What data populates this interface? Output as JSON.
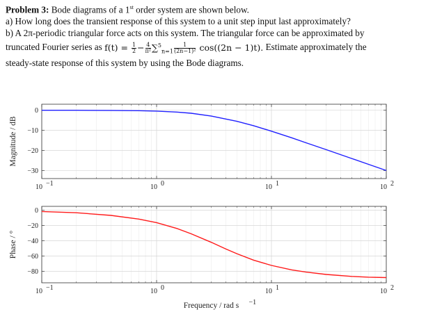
{
  "problem": {
    "heading": "Problem 3:",
    "intro_before_sup": " Bode diagrams of a 1",
    "intro_sup": "st",
    "intro_after_sup": " order system are shown below.",
    "part_a": "a) How long does the transient response of this system to a unit step input last approximately?",
    "part_b_1": "b) A 2π-periodic triangular force acts on this system. The triangular force can be approximated by",
    "part_b_2_before": "truncated Fourier series as ",
    "formula_lhs": "f(t) =",
    "frac1_num": "1",
    "frac1_den": "2",
    "minus": "−",
    "frac2_num": "4",
    "frac2_den": "π²",
    "sum_text": "∑",
    "sum_limits": "n=1",
    "sum_upper": "5",
    "frac3_num": "1",
    "frac3_den": "(2n−1)²",
    "cos_text": "cos((2n − 1)t).",
    "part_b_2_after": " Estimate approximately the",
    "part_b_3": "steady-state response of this system by using the Bode diagrams."
  },
  "chart_data": [
    {
      "type": "line",
      "xscale": "log",
      "xlim": [
        0.1,
        100
      ],
      "ylim": [
        -34,
        3
      ],
      "x_ticks": [
        0.1,
        1,
        10,
        100
      ],
      "x_tick_labels": [
        "10",
        "10",
        "10",
        "10"
      ],
      "x_tick_exps": [
        "−1",
        "0",
        "1",
        "2"
      ],
      "y_ticks": [
        0,
        -10,
        -20,
        -30
      ],
      "y_tick_labels": [
        "0",
        "−10",
        "−20",
        "−30"
      ],
      "ylabel": "Magnitude / dB",
      "grid": true,
      "series": [
        {
          "color": "#1f1fff",
          "x": [
            0.1,
            0.2,
            0.4,
            0.7,
            1,
            1.5,
            2,
            3,
            5,
            7,
            10,
            15,
            20,
            30,
            50,
            70,
            100
          ],
          "y": [
            0.0,
            -0.02,
            -0.07,
            -0.21,
            -0.43,
            -0.92,
            -1.5,
            -2.9,
            -5.5,
            -7.7,
            -10.4,
            -13.7,
            -16.2,
            -19.6,
            -24.0,
            -26.9,
            -30.0
          ]
        }
      ]
    },
    {
      "type": "line",
      "xscale": "log",
      "xlim": [
        0.1,
        100
      ],
      "ylim": [
        -95,
        5
      ],
      "x_ticks": [
        0.1,
        1,
        10,
        100
      ],
      "x_tick_labels": [
        "10",
        "10",
        "10",
        "10"
      ],
      "x_tick_exps": [
        "−1",
        "0",
        "1",
        "2"
      ],
      "y_ticks": [
        0,
        -20,
        -40,
        -60,
        -80
      ],
      "y_tick_labels": [
        "0",
        "−20",
        "−40",
        "−60",
        "−80"
      ],
      "ylabel": "Phase / °",
      "xlabel": "Frequency / rad s",
      "xlabel_exp": "−1",
      "grid": true,
      "series": [
        {
          "color": "#ff1a1a",
          "x": [
            0.1,
            0.2,
            0.4,
            0.7,
            1,
            1.5,
            2,
            3,
            4,
            5,
            7,
            10,
            15,
            20,
            30,
            50,
            70,
            100
          ],
          "y": [
            -1.7,
            -3.4,
            -6.8,
            -11.6,
            -16.3,
            -23.9,
            -30.9,
            -42.1,
            -50.6,
            -56.9,
            -65.4,
            -72.3,
            -78.1,
            -81.0,
            -84.1,
            -86.6,
            -87.6,
            -88.2
          ]
        }
      ]
    }
  ]
}
